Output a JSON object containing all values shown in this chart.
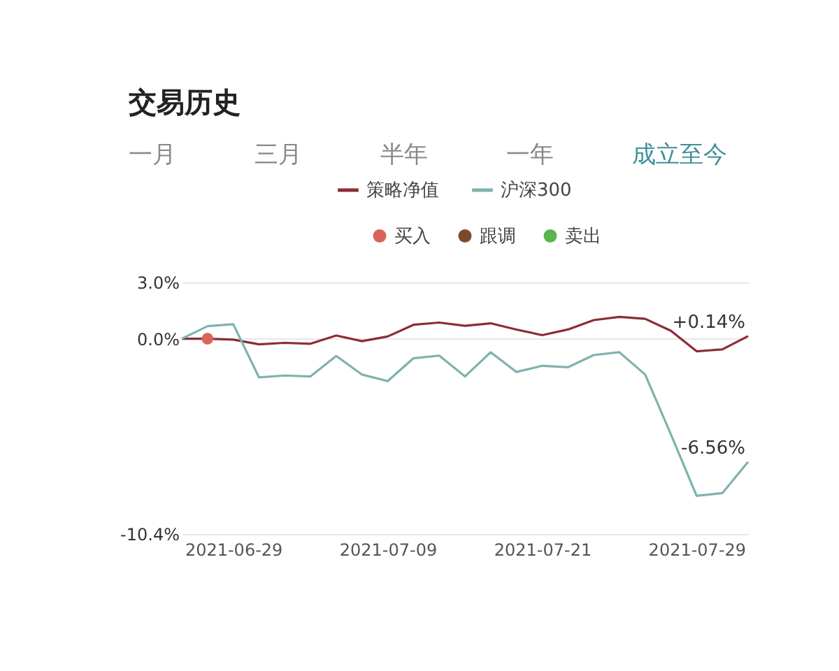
{
  "chart_data": {
    "type": "line",
    "title": "交易历史",
    "categories": [
      null,
      null,
      "2021-06-29",
      null,
      null,
      null,
      null,
      null,
      "2021-07-09",
      null,
      null,
      null,
      null,
      null,
      "2021-07-21",
      null,
      null,
      null,
      null,
      null,
      "2021-07-29",
      null,
      null
    ],
    "series": [
      {
        "name": "策略净值",
        "color": "#8b2d35",
        "values": [
          0.0,
          0.0,
          -0.05,
          -0.3,
          -0.22,
          -0.27,
          0.17,
          -0.13,
          0.12,
          0.74,
          0.86,
          0.69,
          0.82,
          0.49,
          0.19,
          0.49,
          0.99,
          1.16,
          1.06,
          0.42,
          -0.67,
          -0.57,
          0.14
        ],
        "value_labels": [
          null,
          null,
          null,
          null,
          null,
          null,
          null,
          null,
          null,
          null,
          null,
          null,
          null,
          null,
          null,
          null,
          null,
          null,
          null,
          null,
          null,
          null,
          "+0.14%"
        ]
      },
      {
        "name": "沪深300",
        "color": "#7fb3ad",
        "values": [
          0.0,
          0.67,
          0.77,
          -2.06,
          -1.96,
          -2.01,
          -0.92,
          -1.91,
          -2.26,
          -1.04,
          -0.9,
          -2.01,
          -0.72,
          -1.77,
          -1.44,
          -1.52,
          -0.87,
          -0.72,
          -1.91,
          -5.09,
          -8.37,
          -8.22,
          -6.56
        ],
        "value_labels": [
          null,
          null,
          null,
          null,
          null,
          null,
          null,
          null,
          null,
          null,
          null,
          null,
          null,
          null,
          null,
          null,
          null,
          null,
          null,
          null,
          null,
          null,
          "-6.56%"
        ]
      },
      {
        "name": "买入",
        "type": "scatter",
        "color": "#d9645a",
        "values": [
          null,
          0.0,
          null,
          null,
          null,
          null,
          null,
          null,
          null,
          null,
          null,
          null,
          null,
          null,
          null,
          null,
          null,
          null,
          null,
          null,
          null,
          null,
          null
        ]
      },
      {
        "name": "跟调",
        "type": "scatter",
        "color": "#7b4a2b",
        "values": [
          null,
          null,
          null,
          null,
          null,
          null,
          null,
          null,
          null,
          null,
          null,
          null,
          null,
          null,
          null,
          null,
          null,
          null,
          null,
          null,
          null,
          null,
          null
        ]
      },
      {
        "name": "卖出",
        "type": "scatter",
        "color": "#5bb450",
        "values": [
          null,
          null,
          null,
          null,
          null,
          null,
          null,
          null,
          null,
          null,
          null,
          null,
          null,
          null,
          null,
          null,
          null,
          null,
          null,
          null,
          null,
          null,
          null
        ]
      }
    ],
    "ylim": [
      -10.4,
      3.0
    ],
    "yticks": [
      {
        "value": 3.0,
        "label": "3.0%"
      },
      {
        "value": 0.0,
        "label": "0.0%"
      },
      {
        "value": -10.4,
        "label": "-10.4%"
      }
    ],
    "grid": "y",
    "legend": "top",
    "annotations": [
      "一月",
      "三月",
      "半年",
      "一年",
      "成立至今"
    ]
  }
}
